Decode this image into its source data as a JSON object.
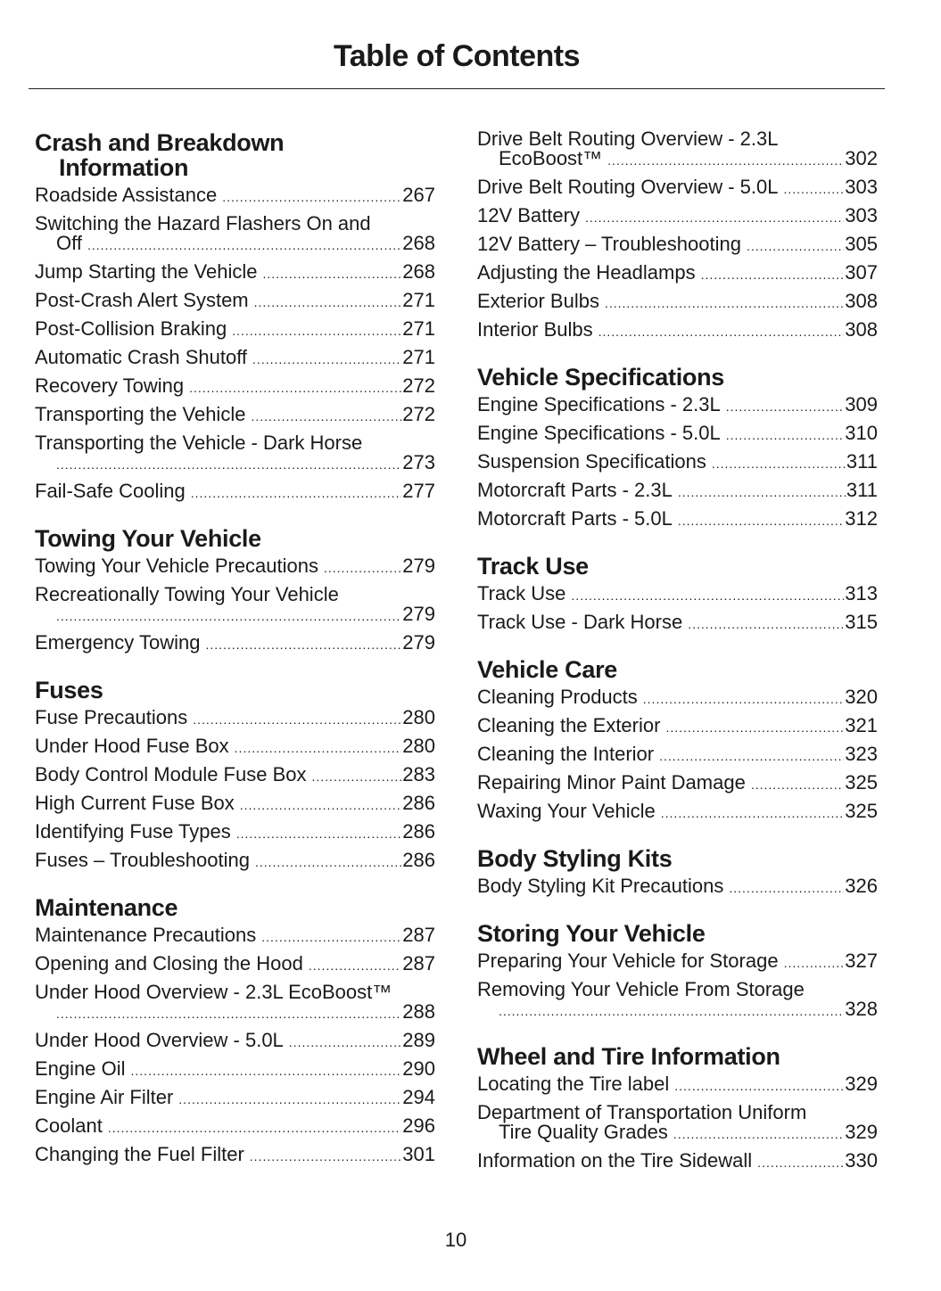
{
  "header": {
    "title": "Table of Contents"
  },
  "footer": {
    "page_number": "10"
  },
  "left": [
    {
      "heading": "Crash and Breakdown",
      "heading2": "Information",
      "entries": [
        {
          "title": "Roadside Assistance",
          "page": "267"
        },
        {
          "title": "Switching the Hazard Flashers On and",
          "cont": "Off",
          "page": "268"
        },
        {
          "title": "Jump Starting the Vehicle",
          "page": "268"
        },
        {
          "title": "Post-Crash Alert System",
          "page": "271"
        },
        {
          "title": "Post-Collision Braking",
          "page": "271"
        },
        {
          "title": "Automatic Crash Shutoff",
          "page": "271"
        },
        {
          "title": "Recovery Towing",
          "page": "272"
        },
        {
          "title": "Transporting the Vehicle",
          "page": "272"
        },
        {
          "title": "Transporting the Vehicle - Dark Horse",
          "cont": "",
          "page": "273"
        },
        {
          "title": "Fail-Safe Cooling",
          "page": "277"
        }
      ]
    },
    {
      "heading": "Towing Your Vehicle",
      "entries": [
        {
          "title": "Towing Your Vehicle Precautions",
          "page": "279"
        },
        {
          "title": "Recreationally Towing Your Vehicle",
          "cont": "",
          "page": "279"
        },
        {
          "title": "Emergency Towing",
          "page": "279"
        }
      ]
    },
    {
      "heading": "Fuses",
      "entries": [
        {
          "title": "Fuse Precautions",
          "page": "280"
        },
        {
          "title": "Under Hood Fuse Box",
          "page": "280"
        },
        {
          "title": "Body Control Module Fuse Box",
          "page": "283"
        },
        {
          "title": "High Current Fuse Box",
          "page": "286"
        },
        {
          "title": "Identifying Fuse Types",
          "page": "286"
        },
        {
          "title": "Fuses – Troubleshooting",
          "page": "286"
        }
      ]
    },
    {
      "heading": "Maintenance",
      "entries": [
        {
          "title": "Maintenance Precautions",
          "page": "287"
        },
        {
          "title": "Opening and Closing the Hood",
          "page": "287"
        },
        {
          "title": "Under Hood Overview - 2.3L EcoBoost™",
          "cont": "",
          "page": "288"
        },
        {
          "title": "Under Hood Overview - 5.0L",
          "page": "289"
        },
        {
          "title": "Engine Oil",
          "page": "290"
        },
        {
          "title": "Engine Air Filter",
          "page": "294"
        },
        {
          "title": "Coolant",
          "page": "296"
        },
        {
          "title": "Changing the Fuel Filter",
          "page": "301"
        }
      ]
    }
  ],
  "right": [
    {
      "heading": "",
      "entries": [
        {
          "title": "Drive Belt Routing Overview - 2.3L",
          "cont": "EcoBoost™",
          "page": "302"
        },
        {
          "title": "Drive Belt Routing Overview - 5.0L",
          "page": "303"
        },
        {
          "title": "12V Battery",
          "page": "303"
        },
        {
          "title": "12V Battery – Troubleshooting",
          "page": "305"
        },
        {
          "title": "Adjusting the Headlamps",
          "page": "307"
        },
        {
          "title": "Exterior Bulbs",
          "page": "308"
        },
        {
          "title": "Interior Bulbs",
          "page": "308"
        }
      ]
    },
    {
      "heading": "Vehicle Specifications",
      "entries": [
        {
          "title": "Engine Specifications - 2.3L",
          "page": "309"
        },
        {
          "title": "Engine Specifications - 5.0L",
          "page": "310"
        },
        {
          "title": "Suspension Specifications",
          "page": "311"
        },
        {
          "title": "Motorcraft Parts - 2.3L",
          "page": "311"
        },
        {
          "title": "Motorcraft Parts - 5.0L",
          "page": "312"
        }
      ]
    },
    {
      "heading": "Track Use",
      "entries": [
        {
          "title": "Track Use",
          "page": "313"
        },
        {
          "title": "Track Use - Dark Horse",
          "page": "315"
        }
      ]
    },
    {
      "heading": "Vehicle Care",
      "entries": [
        {
          "title": "Cleaning Products",
          "page": "320"
        },
        {
          "title": "Cleaning the Exterior",
          "page": "321"
        },
        {
          "title": "Cleaning the Interior",
          "page": "323"
        },
        {
          "title": "Repairing Minor Paint Damage",
          "page": "325"
        },
        {
          "title": "Waxing Your Vehicle",
          "page": "325"
        }
      ]
    },
    {
      "heading": "Body Styling Kits",
      "entries": [
        {
          "title": "Body Styling Kit Precautions",
          "page": "326"
        }
      ]
    },
    {
      "heading": "Storing Your Vehicle",
      "entries": [
        {
          "title": "Preparing Your Vehicle for Storage",
          "page": "327"
        },
        {
          "title": "Removing Your Vehicle From Storage",
          "cont": "",
          "page": "328"
        }
      ]
    },
    {
      "heading": "Wheel and Tire Information",
      "entries": [
        {
          "title": "Locating the Tire label",
          "page": "329"
        },
        {
          "title": "Department of Transportation Uniform",
          "cont": "Tire Quality Grades",
          "page": "329"
        },
        {
          "title": "Information on the Tire Sidewall",
          "page": "330"
        }
      ]
    }
  ]
}
